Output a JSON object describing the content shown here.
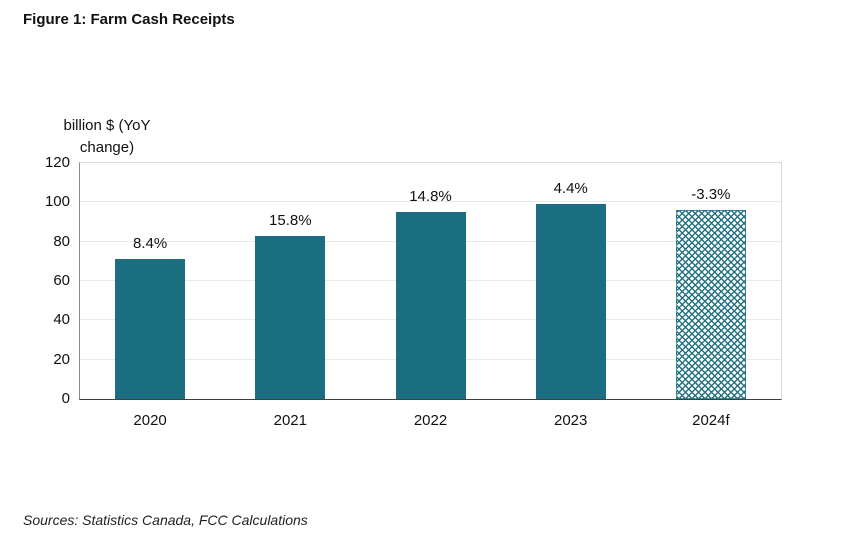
{
  "figure": {
    "title": "Figure 1: Farm Cash Receipts"
  },
  "source_note": "Sources: Statistics Canada, FCC Calculations",
  "colors": {
    "bar_teal": "#1b6e80",
    "axis_dark": "#404040",
    "gridline": "#e9e9e9"
  },
  "chart_data": {
    "type": "bar",
    "title": "Figure 1: Farm Cash Receipts",
    "xlabel": "",
    "ylabel": "billion $ (YoY change)",
    "ylabel_lines": [
      "billion $ (YoY",
      "change)"
    ],
    "categories": [
      "2020",
      "2021",
      "2022",
      "2023",
      "2024f"
    ],
    "values": [
      71,
      83,
      95,
      99,
      96
    ],
    "bar_labels": [
      "8.4%",
      "15.8%",
      "14.8%",
      "4.4%",
      "-3.3%"
    ],
    "yticks": [
      0,
      20,
      40,
      60,
      80,
      100,
      120
    ],
    "ylim": [
      0,
      120
    ],
    "grid": true,
    "legend": "none",
    "bar_color": "#1b6e80",
    "forecast_index": 4,
    "forecast_style": "dotted-hatch-pattern"
  }
}
